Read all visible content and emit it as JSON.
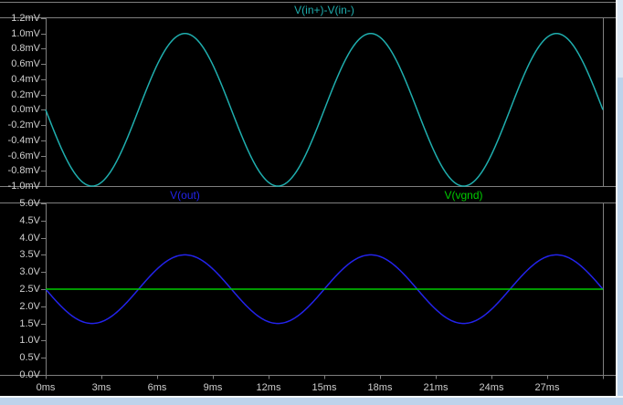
{
  "colors": {
    "background": "#000000",
    "plot_border": "#7F7F7F",
    "axis_text": "#CFCFCF",
    "frame": "#BDD3EB",
    "frame_highlight": "#F2F6FB",
    "frame_thumb": "#DCE7F3"
  },
  "top_pane": {
    "title": "V(in+)-V(in-)",
    "title_color": "#1FAEAE",
    "y_tick_labels": [
      "1.2mV",
      "1.0mV",
      "0.8mV",
      "0.6mV",
      "0.4mV",
      "0.2mV",
      "0.0mV",
      "-0.2mV",
      "-0.4mV",
      "-0.6mV",
      "-0.8mV",
      "-1.0mV"
    ]
  },
  "bottom_pane": {
    "trace_labels": [
      {
        "text": "V(out)",
        "color": "#2323EB"
      },
      {
        "text": "V(vgnd)",
        "color": "#00CC00"
      }
    ],
    "y_tick_labels": [
      "5.0V",
      "4.5V",
      "4.0V",
      "3.5V",
      "3.0V",
      "2.5V",
      "2.0V",
      "1.5V",
      "1.0V",
      "0.5V",
      "0.0V"
    ]
  },
  "x_axis": {
    "tick_labels": [
      "0ms",
      "3ms",
      "6ms",
      "9ms",
      "12ms",
      "15ms",
      "18ms",
      "21ms",
      "24ms",
      "27ms"
    ]
  },
  "chart_data": [
    {
      "type": "line",
      "pane": "top",
      "title": "V(in+)-V(in-)",
      "grid": false,
      "x": {
        "unit": "ms",
        "range": [
          0,
          30
        ],
        "tick_step": 3
      },
      "y": {
        "unit": "mV",
        "range": [
          -1.0,
          1.2
        ],
        "tick_step": 0.2
      },
      "series": [
        {
          "name": "V(in+)-V(in-)",
          "color": "#1FAEAE",
          "waveform": "sine",
          "offset": 0.0,
          "amplitude": 1.0,
          "period_ms": 10,
          "polarity": -1,
          "sample_points_t_v": [
            [
              0,
              0
            ],
            [
              2.5,
              -1.0
            ],
            [
              5,
              0
            ],
            [
              7.5,
              1.0
            ],
            [
              10,
              0
            ],
            [
              12.5,
              -1.0
            ],
            [
              15,
              0
            ],
            [
              17.5,
              1.0
            ],
            [
              20,
              0
            ],
            [
              22.5,
              -1.0
            ],
            [
              25,
              0
            ],
            [
              27.5,
              1.0
            ],
            [
              30,
              0
            ]
          ]
        }
      ]
    },
    {
      "type": "line",
      "pane": "bottom",
      "title": "V(out), V(vgnd)",
      "grid": false,
      "x": {
        "unit": "ms",
        "range": [
          0,
          30
        ],
        "tick_step": 3
      },
      "y": {
        "unit": "V",
        "range": [
          0.0,
          5.0
        ],
        "tick_step": 0.5
      },
      "series": [
        {
          "name": "V(out)",
          "color": "#2323EB",
          "waveform": "sine",
          "offset": 2.5,
          "amplitude": 1.0,
          "period_ms": 10,
          "polarity": -1,
          "sample_points_t_v": [
            [
              0,
              2.5
            ],
            [
              2.5,
              1.5
            ],
            [
              5,
              2.5
            ],
            [
              7.5,
              3.5
            ],
            [
              10,
              2.5
            ],
            [
              12.5,
              1.5
            ],
            [
              15,
              2.5
            ],
            [
              17.5,
              3.5
            ],
            [
              20,
              2.5
            ],
            [
              22.5,
              1.5
            ],
            [
              25,
              2.5
            ],
            [
              27.5,
              3.5
            ],
            [
              30,
              2.5
            ]
          ]
        },
        {
          "name": "V(vgnd)",
          "color": "#00CC00",
          "waveform": "constant",
          "offset": 2.5,
          "amplitude": 0.0,
          "period_ms": 10,
          "polarity": 1,
          "sample_points_t_v": [
            [
              0,
              2.5
            ],
            [
              30,
              2.5
            ]
          ]
        }
      ]
    }
  ]
}
